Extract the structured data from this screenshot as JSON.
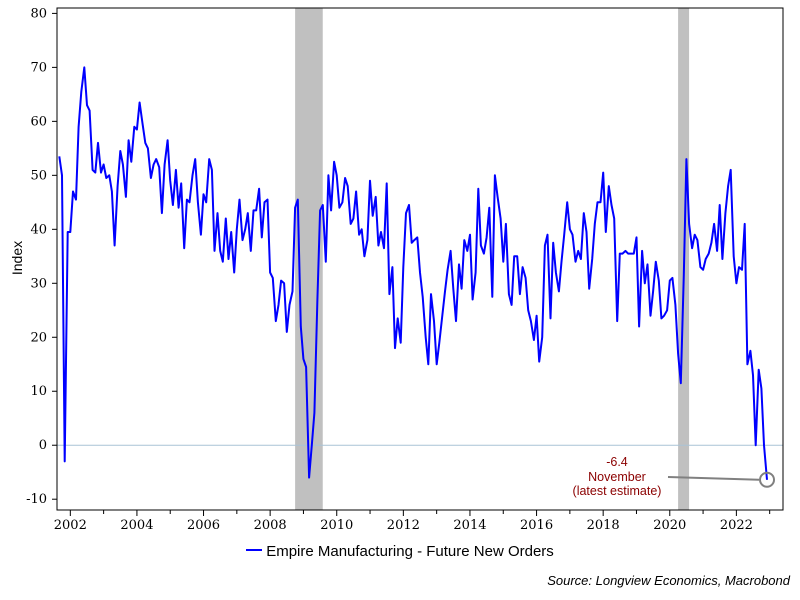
{
  "chart_data": {
    "type": "line",
    "title": "",
    "xlabel": "",
    "ylabel": "Index",
    "ylim": [
      -12,
      81
    ],
    "xlim": [
      2001.6,
      2023.4
    ],
    "yticks": [
      -10,
      0,
      10,
      20,
      30,
      40,
      50,
      60,
      70,
      80
    ],
    "xticks": [
      2002,
      2004,
      2006,
      2008,
      2010,
      2012,
      2014,
      2016,
      2018,
      2020,
      2022
    ],
    "grid": false,
    "legend_placement": "bottom-center",
    "reference_line": 0,
    "recessions": [
      {
        "start": 2008.75,
        "end": 2009.58
      },
      {
        "start": 2020.25,
        "end": 2020.58
      }
    ],
    "series": [
      {
        "name": "Empire Manufacturing - Future New Orders",
        "color": "#0000ff",
        "points": [
          [
            2001.67,
            53.5
          ],
          [
            2001.75,
            50
          ],
          [
            2001.83,
            -3
          ],
          [
            2001.92,
            39.5
          ],
          [
            2002.0,
            39.5
          ],
          [
            2002.08,
            47
          ],
          [
            2002.17,
            45.5
          ],
          [
            2002.25,
            59
          ],
          [
            2002.33,
            65.5
          ],
          [
            2002.42,
            70
          ],
          [
            2002.5,
            63
          ],
          [
            2002.58,
            62
          ],
          [
            2002.67,
            51
          ],
          [
            2002.75,
            50.5
          ],
          [
            2002.83,
            56
          ],
          [
            2002.92,
            50.5
          ],
          [
            2003.0,
            52
          ],
          [
            2003.08,
            49.5
          ],
          [
            2003.17,
            50
          ],
          [
            2003.25,
            47
          ],
          [
            2003.33,
            37
          ],
          [
            2003.42,
            48
          ],
          [
            2003.5,
            54.5
          ],
          [
            2003.58,
            52
          ],
          [
            2003.67,
            46
          ],
          [
            2003.75,
            56.5
          ],
          [
            2003.83,
            52.5
          ],
          [
            2003.92,
            59
          ],
          [
            2004.0,
            58.5
          ],
          [
            2004.08,
            63.5
          ],
          [
            2004.17,
            59.5
          ],
          [
            2004.25,
            56
          ],
          [
            2004.33,
            55
          ],
          [
            2004.42,
            49.5
          ],
          [
            2004.5,
            52
          ],
          [
            2004.58,
            53
          ],
          [
            2004.67,
            51.5
          ],
          [
            2004.75,
            43
          ],
          [
            2004.83,
            52
          ],
          [
            2004.92,
            56.5
          ],
          [
            2005.0,
            49
          ],
          [
            2005.08,
            44.5
          ],
          [
            2005.17,
            51
          ],
          [
            2005.25,
            44
          ],
          [
            2005.33,
            48.5
          ],
          [
            2005.42,
            36.5
          ],
          [
            2005.5,
            45.5
          ],
          [
            2005.58,
            45
          ],
          [
            2005.67,
            50
          ],
          [
            2005.75,
            53
          ],
          [
            2005.83,
            45
          ],
          [
            2005.92,
            39
          ],
          [
            2006.0,
            46.5
          ],
          [
            2006.08,
            45
          ],
          [
            2006.17,
            53
          ],
          [
            2006.25,
            51
          ],
          [
            2006.33,
            36
          ],
          [
            2006.42,
            43
          ],
          [
            2006.5,
            36
          ],
          [
            2006.58,
            34
          ],
          [
            2006.67,
            42
          ],
          [
            2006.75,
            34.5
          ],
          [
            2006.83,
            39.5
          ],
          [
            2006.92,
            32
          ],
          [
            2007.0,
            40
          ],
          [
            2007.08,
            45.5
          ],
          [
            2007.17,
            38
          ],
          [
            2007.25,
            40
          ],
          [
            2007.33,
            43
          ],
          [
            2007.42,
            36
          ],
          [
            2007.5,
            43.5
          ],
          [
            2007.58,
            43.5
          ],
          [
            2007.67,
            47.5
          ],
          [
            2007.75,
            38.5
          ],
          [
            2007.83,
            45
          ],
          [
            2007.92,
            45.5
          ],
          [
            2008.0,
            32
          ],
          [
            2008.08,
            31
          ],
          [
            2008.17,
            23
          ],
          [
            2008.25,
            26
          ],
          [
            2008.33,
            30.5
          ],
          [
            2008.42,
            30
          ],
          [
            2008.5,
            21
          ],
          [
            2008.58,
            26
          ],
          [
            2008.67,
            28.5
          ],
          [
            2008.75,
            44
          ],
          [
            2008.83,
            45.5
          ],
          [
            2008.92,
            22
          ],
          [
            2009.0,
            16
          ],
          [
            2009.08,
            14.5
          ],
          [
            2009.17,
            -6
          ],
          [
            2009.25,
            0
          ],
          [
            2009.33,
            6
          ],
          [
            2009.42,
            27
          ],
          [
            2009.5,
            43.5
          ],
          [
            2009.58,
            44.5
          ],
          [
            2009.67,
            34
          ],
          [
            2009.75,
            50
          ],
          [
            2009.83,
            43.5
          ],
          [
            2009.92,
            52.5
          ],
          [
            2010.0,
            50
          ],
          [
            2010.08,
            44
          ],
          [
            2010.17,
            45
          ],
          [
            2010.25,
            49.5
          ],
          [
            2010.33,
            48
          ],
          [
            2010.42,
            41
          ],
          [
            2010.5,
            42
          ],
          [
            2010.58,
            47
          ],
          [
            2010.67,
            39
          ],
          [
            2010.75,
            40
          ],
          [
            2010.83,
            35
          ],
          [
            2010.92,
            38
          ],
          [
            2011.0,
            49
          ],
          [
            2011.08,
            42.5
          ],
          [
            2011.17,
            46
          ],
          [
            2011.25,
            37
          ],
          [
            2011.33,
            39.5
          ],
          [
            2011.42,
            36.5
          ],
          [
            2011.5,
            48.5
          ],
          [
            2011.58,
            28
          ],
          [
            2011.67,
            33
          ],
          [
            2011.75,
            18
          ],
          [
            2011.83,
            23.5
          ],
          [
            2011.92,
            19
          ],
          [
            2012.0,
            33
          ],
          [
            2012.08,
            43
          ],
          [
            2012.17,
            44.5
          ],
          [
            2012.25,
            37.5
          ],
          [
            2012.33,
            38
          ],
          [
            2012.42,
            38.5
          ],
          [
            2012.5,
            32
          ],
          [
            2012.58,
            27.5
          ],
          [
            2012.67,
            20
          ],
          [
            2012.75,
            15
          ],
          [
            2012.83,
            28
          ],
          [
            2012.92,
            23
          ],
          [
            2013.0,
            15
          ],
          [
            2013.08,
            19
          ],
          [
            2013.17,
            24
          ],
          [
            2013.25,
            28.5
          ],
          [
            2013.33,
            32.5
          ],
          [
            2013.42,
            36
          ],
          [
            2013.5,
            29
          ],
          [
            2013.58,
            23
          ],
          [
            2013.67,
            33.5
          ],
          [
            2013.75,
            29
          ],
          [
            2013.83,
            38
          ],
          [
            2013.92,
            36
          ],
          [
            2014.0,
            39
          ],
          [
            2014.08,
            27
          ],
          [
            2014.17,
            32
          ],
          [
            2014.25,
            47.5
          ],
          [
            2014.33,
            37
          ],
          [
            2014.42,
            35.5
          ],
          [
            2014.5,
            38.5
          ],
          [
            2014.58,
            44
          ],
          [
            2014.67,
            27.5
          ],
          [
            2014.75,
            50
          ],
          [
            2014.83,
            46
          ],
          [
            2014.92,
            42
          ],
          [
            2015.0,
            34
          ],
          [
            2015.08,
            41
          ],
          [
            2015.17,
            28
          ],
          [
            2015.25,
            26
          ],
          [
            2015.33,
            35
          ],
          [
            2015.42,
            35
          ],
          [
            2015.5,
            28
          ],
          [
            2015.58,
            33
          ],
          [
            2015.67,
            31
          ],
          [
            2015.75,
            25
          ],
          [
            2015.83,
            23
          ],
          [
            2015.92,
            19.5
          ],
          [
            2016.0,
            24
          ],
          [
            2016.08,
            15.5
          ],
          [
            2016.17,
            20
          ],
          [
            2016.25,
            37
          ],
          [
            2016.33,
            39
          ],
          [
            2016.42,
            23.5
          ],
          [
            2016.5,
            37.5
          ],
          [
            2016.58,
            32
          ],
          [
            2016.67,
            28.5
          ],
          [
            2016.75,
            34
          ],
          [
            2016.83,
            39
          ],
          [
            2016.92,
            45
          ],
          [
            2017.0,
            40
          ],
          [
            2017.08,
            39
          ],
          [
            2017.17,
            34
          ],
          [
            2017.25,
            36
          ],
          [
            2017.33,
            34.5
          ],
          [
            2017.42,
            43
          ],
          [
            2017.5,
            39.5
          ],
          [
            2017.58,
            29
          ],
          [
            2017.67,
            34.5
          ],
          [
            2017.75,
            41
          ],
          [
            2017.83,
            45
          ],
          [
            2017.92,
            45
          ],
          [
            2018.0,
            50.5
          ],
          [
            2018.08,
            39.5
          ],
          [
            2018.17,
            48
          ],
          [
            2018.25,
            44.5
          ],
          [
            2018.33,
            42
          ],
          [
            2018.42,
            23
          ],
          [
            2018.5,
            35.5
          ],
          [
            2018.58,
            35.5
          ],
          [
            2018.67,
            36
          ],
          [
            2018.75,
            35.5
          ],
          [
            2018.83,
            35.5
          ],
          [
            2018.92,
            35.5
          ],
          [
            2019.0,
            38.5
          ],
          [
            2019.08,
            22
          ],
          [
            2019.17,
            36
          ],
          [
            2019.25,
            30
          ],
          [
            2019.33,
            33.5
          ],
          [
            2019.42,
            24
          ],
          [
            2019.5,
            28.5
          ],
          [
            2019.58,
            34
          ],
          [
            2019.67,
            30.5
          ],
          [
            2019.75,
            23.5
          ],
          [
            2019.83,
            24
          ],
          [
            2019.92,
            25
          ],
          [
            2020.0,
            30.5
          ],
          [
            2020.08,
            31
          ],
          [
            2020.17,
            26
          ],
          [
            2020.25,
            17
          ],
          [
            2020.33,
            11.5
          ],
          [
            2020.42,
            31.5
          ],
          [
            2020.5,
            53
          ],
          [
            2020.58,
            41
          ],
          [
            2020.67,
            36.5
          ],
          [
            2020.75,
            39
          ],
          [
            2020.83,
            38
          ],
          [
            2020.92,
            33
          ],
          [
            2021.0,
            32.5
          ],
          [
            2021.08,
            34.5
          ],
          [
            2021.17,
            35.5
          ],
          [
            2021.25,
            37.5
          ],
          [
            2021.33,
            41
          ],
          [
            2021.42,
            36
          ],
          [
            2021.5,
            44.5
          ],
          [
            2021.58,
            34.5
          ],
          [
            2021.67,
            43
          ],
          [
            2021.75,
            48
          ],
          [
            2021.83,
            51
          ],
          [
            2021.92,
            35
          ],
          [
            2022.0,
            30
          ],
          [
            2022.08,
            33
          ],
          [
            2022.17,
            32.5
          ],
          [
            2022.25,
            41
          ],
          [
            2022.33,
            15
          ],
          [
            2022.42,
            17.5
          ],
          [
            2022.5,
            13
          ],
          [
            2022.58,
            0
          ],
          [
            2022.67,
            14
          ],
          [
            2022.75,
            10.5
          ],
          [
            2022.83,
            0
          ],
          [
            2022.92,
            -6.4
          ]
        ]
      }
    ],
    "annotation": {
      "value_label": "-6.4",
      "line2": "November",
      "line3": "(latest estimate)",
      "point": [
        2022.92,
        -6.4
      ]
    },
    "source": "Source: Longview Economics, Macrobond"
  }
}
